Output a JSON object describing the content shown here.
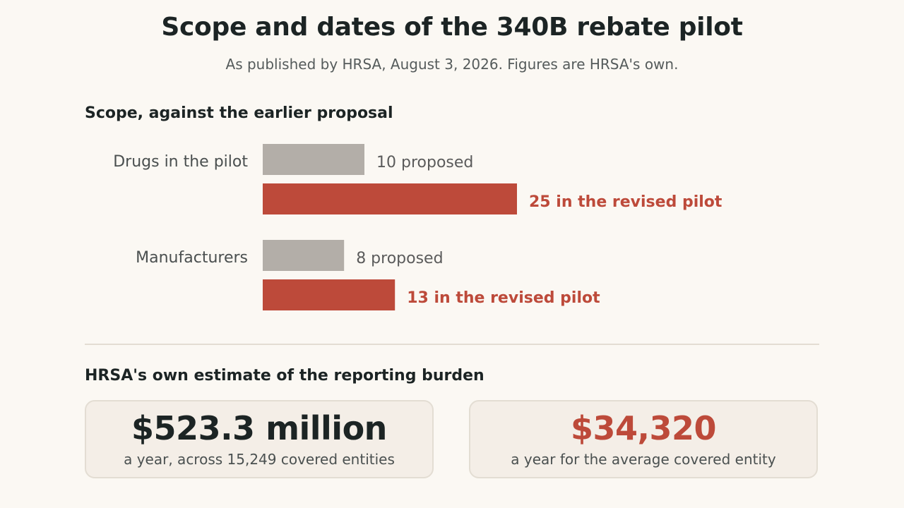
{
  "title": "Scope and dates of the 340B rebate pilot",
  "subtitle": "As published by HRSA, August 3, 2026. Figures are HRSA's own.",
  "scope_section": {
    "title": "Scope, against the earlier proposal"
  },
  "burden_section": {
    "title": "HRSA's own estimate of the reporting burden",
    "cards": [
      {
        "value": "$523.3 million",
        "caption": "a year, across 15,249 covered entities",
        "color": "#1c2424"
      },
      {
        "value": "$34,320",
        "caption": "a year for the average covered entity",
        "color": "#bd4a3a"
      }
    ]
  },
  "colors": {
    "proposed": "#b3aea8",
    "revised": "#bd4a3a",
    "proposed_text": "#5b5b5b",
    "label_text": "#4a4f4f"
  },
  "chart_data": {
    "type": "bar",
    "orientation": "horizontal",
    "categories": [
      "Drugs in the pilot",
      "Manufacturers"
    ],
    "series": [
      {
        "key": "proposed",
        "values": [
          10,
          8
        ],
        "labels": [
          "10 proposed",
          "8 proposed"
        ]
      },
      {
        "key": "revised",
        "values": [
          25,
          13
        ],
        "labels": [
          "25 in the revised pilot",
          "13 in the revised pilot"
        ]
      }
    ],
    "xlim": [
      0,
      25
    ],
    "grid": false,
    "legend": "none"
  }
}
